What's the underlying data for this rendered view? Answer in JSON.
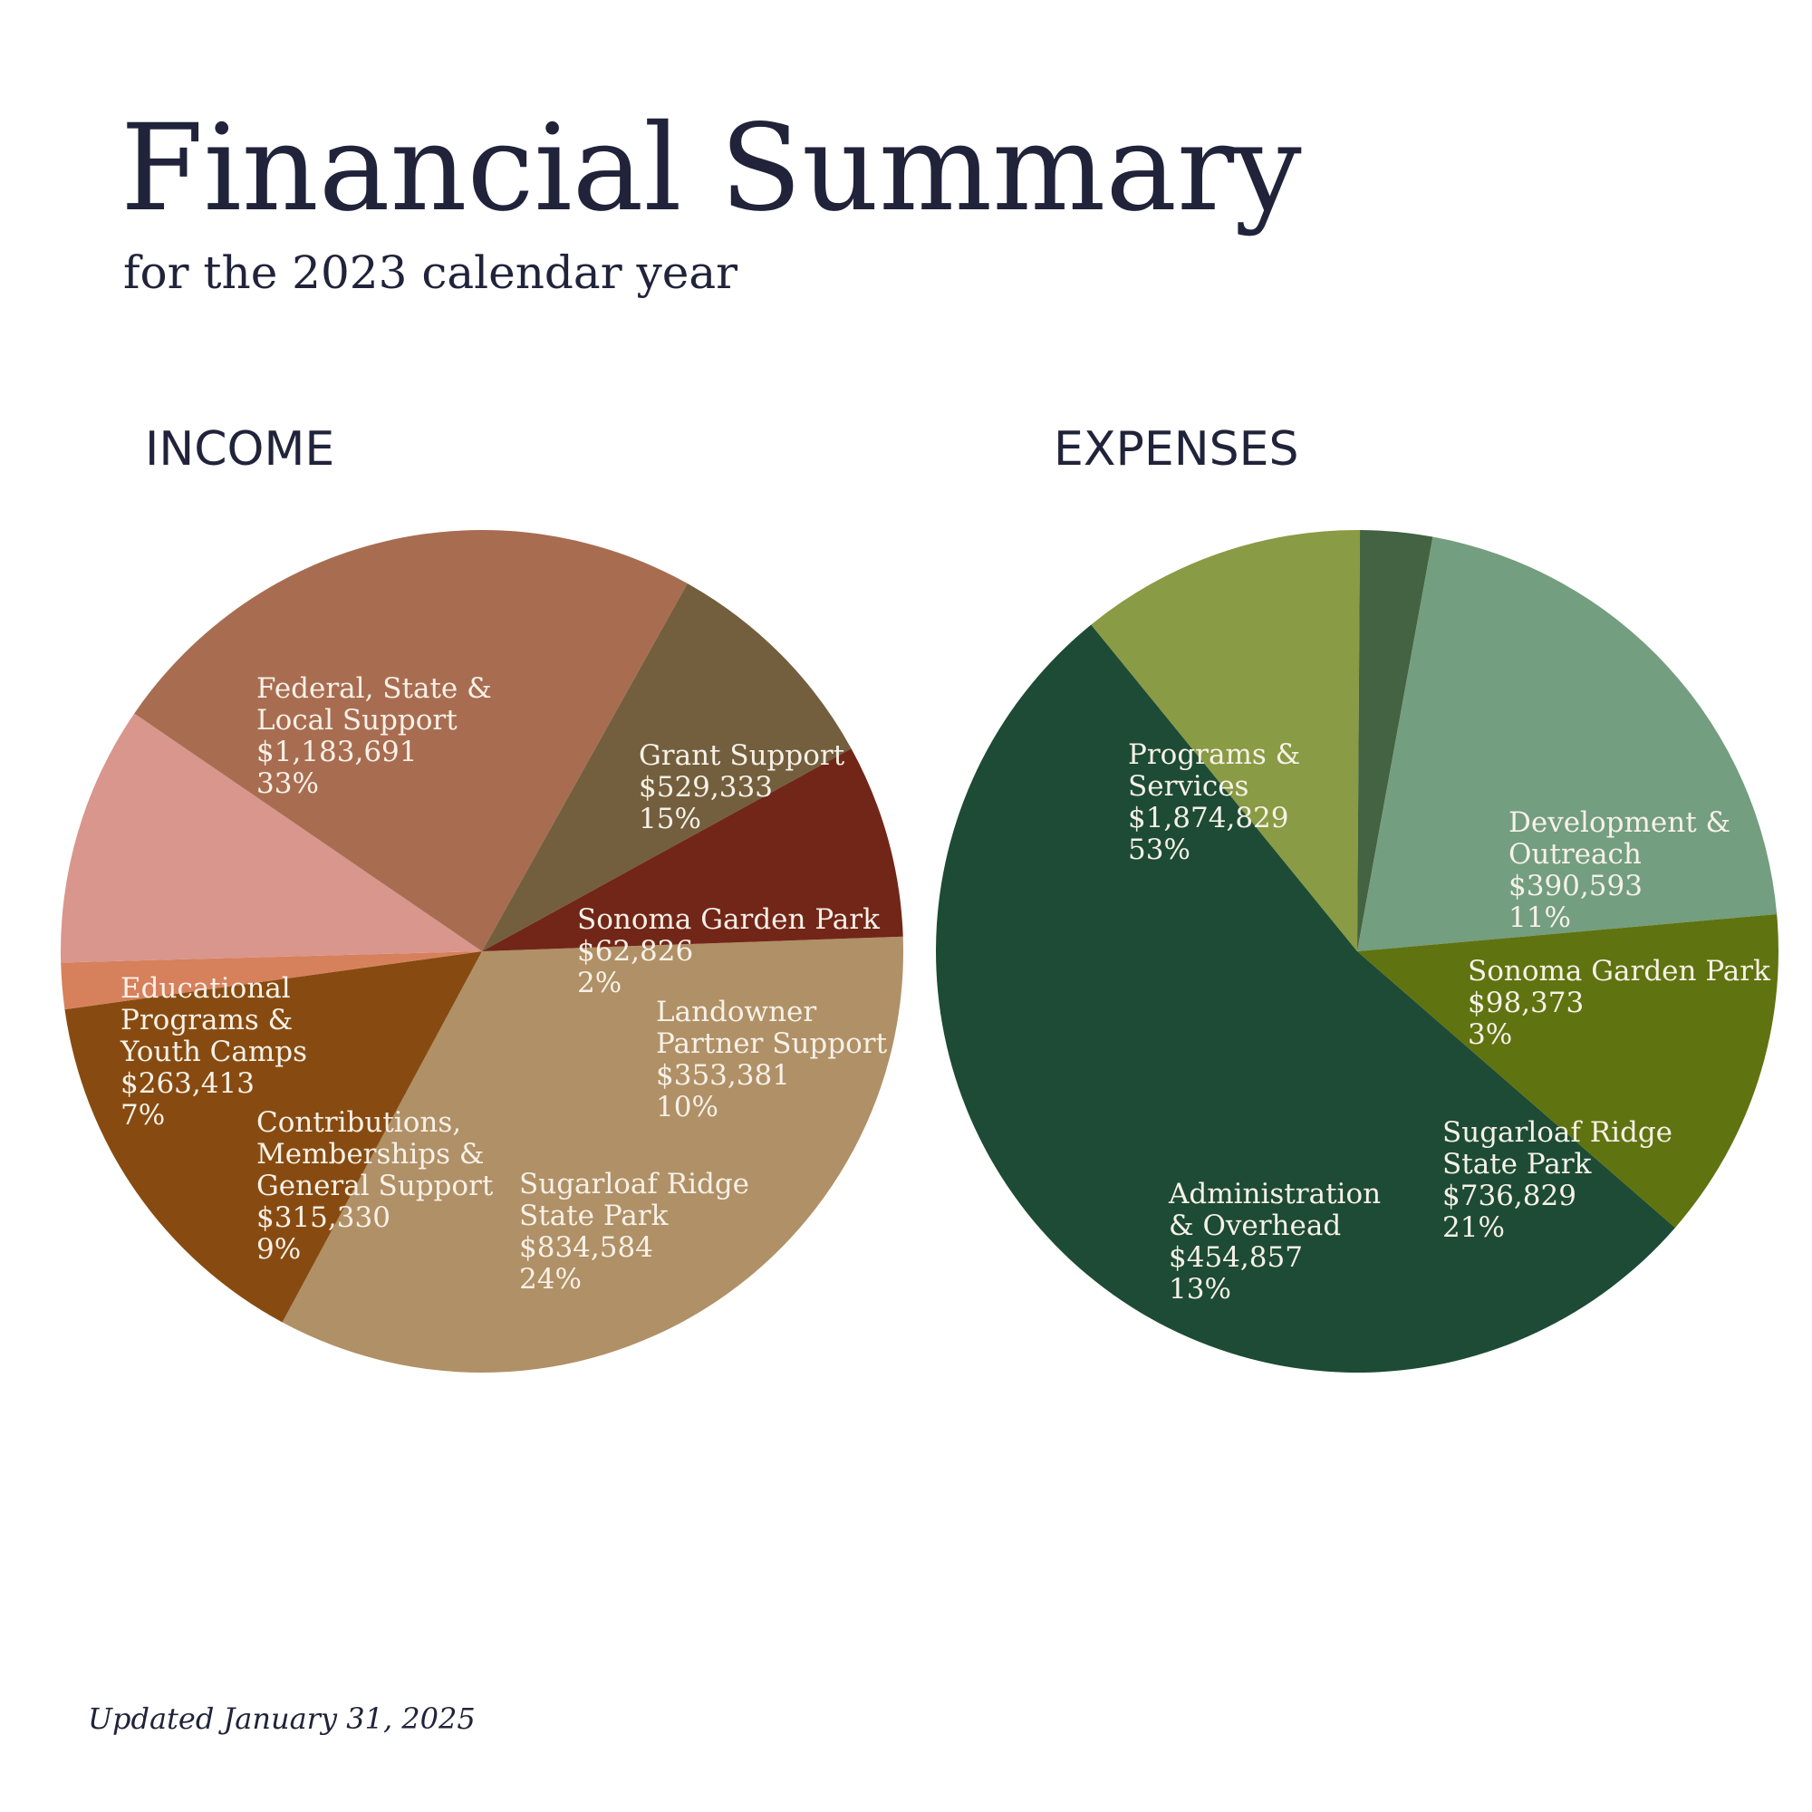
{
  "page": {
    "title": "Financial Summary",
    "subtitle": "for the 2023 calendar year",
    "updated": "Updated January 31, 2025"
  },
  "chart_data": [
    {
      "type": "pie",
      "title": "INCOME",
      "label_color": "#f7f1e8",
      "slices": [
        {
          "label": [
            "Federal, State &",
            "Local Support"
          ],
          "value": 1183691,
          "value_label": "$1,183,691",
          "percent_label": "33%",
          "color": "#b09066"
        },
        {
          "label": [
            "Grant Support"
          ],
          "value": 529333,
          "value_label": "$529,333",
          "percent_label": "15%",
          "color": "#874b11"
        },
        {
          "label": [
            "Sonoma Garden Park"
          ],
          "value": 62826,
          "value_label": "$62,826",
          "percent_label": "2%",
          "color": "#d7805c"
        },
        {
          "label": [
            "Landowner",
            "Partner Support"
          ],
          "value": 353381,
          "value_label": "$353,381",
          "percent_label": "10%",
          "color": "#d8968c"
        },
        {
          "label": [
            "Sugarloaf Ridge",
            "State Park"
          ],
          "value": 834584,
          "value_label": "$834,584",
          "percent_label": "24%",
          "color": "#a86d51"
        },
        {
          "label": [
            "Contributions,",
            "Memberships &",
            "General Support"
          ],
          "value": 315330,
          "value_label": "$315,330",
          "percent_label": "9%",
          "color": "#735f3e"
        },
        {
          "label": [
            "Educational",
            "Programs &",
            "Youth Camps"
          ],
          "value": 263413,
          "value_label": "$263,413",
          "percent_label": "7%",
          "color": "#722618"
        }
      ]
    },
    {
      "type": "pie",
      "title": "EXPENSES",
      "label_color": "#f7f1e8",
      "slices": [
        {
          "label": [
            "Programs &",
            "Services"
          ],
          "value": 1874829,
          "value_label": "$1,874,829",
          "percent_label": "53%",
          "color": "#1d4b35"
        },
        {
          "label": [
            "Development &",
            "Outreach"
          ],
          "value": 390593,
          "value_label": "$390,593",
          "percent_label": "11%",
          "color": "#899b44"
        },
        {
          "label": [
            "Sonoma Garden Park"
          ],
          "value": 98373,
          "value_label": "$98,373",
          "percent_label": "3%",
          "color": "#436342"
        },
        {
          "label": [
            "Sugarloaf Ridge",
            "State Park"
          ],
          "value": 736829,
          "value_label": "$736,829",
          "percent_label": "21%",
          "color": "#739e7f"
        },
        {
          "label": [
            "Administration",
            "& Overhead"
          ],
          "value": 454857,
          "value_label": "$454,857",
          "percent_label": "13%",
          "color": "#5f7310"
        }
      ]
    }
  ]
}
